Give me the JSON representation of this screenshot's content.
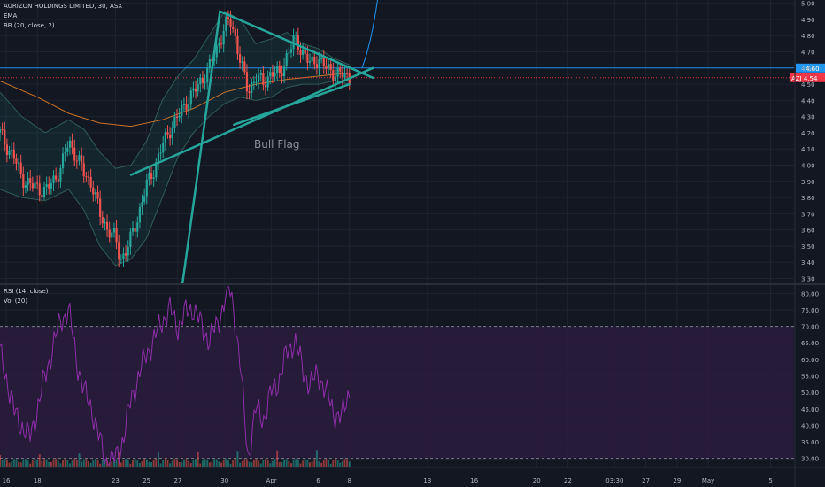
{
  "legend": {
    "symbol": "AURIZON HOLDINGS LIMITED, 30, ASX",
    "ema": "EMA",
    "bb": "BB (20, close, 2)",
    "rsi": "RSI (14, close)",
    "vol": "Vol (20)"
  },
  "colors": {
    "background": "#131722",
    "grid": "#1f2330",
    "up_candle": "#26a69a",
    "down_candle": "#ef5350",
    "trendline": "#26a69a",
    "bb_band": "#2e5c57",
    "ema": "#c9742a",
    "price_line": "#2196f3",
    "rsi_line": "#8e2ea8",
    "rsi_band": "#2a1c3d",
    "price_tag": "#f23645",
    "level_tag": "#2196f3",
    "axis_text": "#b2b5be"
  },
  "annotation": {
    "text": "Bull Flag"
  },
  "chart_data": [
    {
      "type": "candlestick",
      "title": "AURIZON HOLDINGS LIMITED, 30, ASX",
      "y_axis_ticks": [
        "5.00",
        "4.90",
        "4.80",
        "4.70",
        "4.60",
        "4.50",
        "4.40",
        "4.30",
        "4.20",
        "4.10",
        "4.00",
        "3.90",
        "3.80",
        "3.70",
        "3.60",
        "3.50",
        "3.40",
        "3.30"
      ],
      "ylim": [
        3.27,
        5.02
      ],
      "x_axis_ticks": [
        "16",
        "18",
        "23",
        "25",
        "27",
        "30",
        "Apr",
        "6",
        "8",
        "13",
        "16",
        "20",
        "22",
        "03:30",
        "27",
        "29",
        "May",
        "5"
      ],
      "x_axis_tick_values": [
        16,
        18,
        23,
        25,
        27,
        30,
        33,
        36,
        38,
        43,
        46,
        50,
        52,
        55,
        57,
        59,
        61,
        65
      ],
      "xlim": [
        15.6,
        66.5
      ],
      "close_series": {
        "x": [
          15.6,
          16,
          16.5,
          17,
          17.5,
          18,
          18.5,
          19,
          19.5,
          20,
          20.5,
          21,
          21.5,
          22,
          22.5,
          23,
          23.3,
          23.6,
          24,
          24.5,
          25,
          25.5,
          26,
          26.5,
          27,
          27.5,
          28,
          28.5,
          29,
          29.5,
          30,
          30.3,
          30.6,
          31,
          31.5,
          32,
          32.5,
          33,
          33.5,
          34,
          34.5,
          35,
          35.5,
          36,
          36.5,
          37,
          37.5,
          38
        ],
        "close": [
          4.2,
          4.12,
          4.05,
          3.92,
          3.88,
          3.86,
          3.84,
          3.9,
          3.98,
          4.15,
          4.05,
          3.95,
          3.88,
          3.7,
          3.6,
          3.55,
          3.42,
          3.45,
          3.55,
          3.7,
          3.88,
          3.98,
          4.12,
          4.22,
          4.3,
          4.38,
          4.45,
          4.52,
          4.6,
          4.72,
          4.85,
          4.9,
          4.82,
          4.65,
          4.45,
          4.55,
          4.5,
          4.58,
          4.55,
          4.68,
          4.78,
          4.7,
          4.62,
          4.66,
          4.6,
          4.57,
          4.56,
          4.54
        ]
      },
      "ema_series": {
        "x": [
          15.6,
          18,
          20,
          22,
          24,
          26,
          28,
          30,
          32,
          34,
          36,
          38
        ],
        "value": [
          4.52,
          4.42,
          4.32,
          4.26,
          4.24,
          4.28,
          4.35,
          4.45,
          4.5,
          4.53,
          4.55,
          4.57
        ]
      },
      "bb_upper": {
        "x": [
          15.6,
          17,
          18.5,
          20,
          21,
          22,
          23,
          24,
          25,
          26,
          27,
          28,
          29,
          30,
          31,
          32,
          33,
          34,
          35,
          36,
          37,
          38
        ],
        "value": [
          4.45,
          4.3,
          4.2,
          4.28,
          4.22,
          4.08,
          3.98,
          4.0,
          4.15,
          4.4,
          4.55,
          4.65,
          4.8,
          4.95,
          4.9,
          4.75,
          4.78,
          4.82,
          4.75,
          4.72,
          4.66,
          4.62
        ]
      },
      "bb_lower": {
        "x": [
          15.6,
          17,
          18.5,
          20,
          21,
          22,
          23,
          24,
          25,
          26,
          27,
          28,
          29,
          30,
          31,
          32,
          33,
          34,
          35,
          36,
          37,
          38
        ],
        "value": [
          3.85,
          3.8,
          3.78,
          3.85,
          3.72,
          3.5,
          3.38,
          3.42,
          3.55,
          3.8,
          4.05,
          4.2,
          4.3,
          4.38,
          4.42,
          4.4,
          4.42,
          4.48,
          4.5,
          4.5,
          4.52,
          4.5
        ]
      },
      "price_levels": [
        {
          "label": "4.60",
          "value": 4.6
        },
        {
          "label": "AZJ 4.54",
          "value": 4.54
        }
      ],
      "current_price": 4.54,
      "trendlines": [
        {
          "from": [
            29.7,
            4.95
          ],
          "to": [
            39.5,
            4.54
          ]
        },
        {
          "from": [
            24,
            3.94
          ],
          "to": [
            39.5,
            4.6
          ]
        },
        {
          "from": [
            27.3,
            3.27
          ],
          "to": [
            29.7,
            4.95
          ]
        },
        {
          "from": [
            30.6,
            4.25
          ],
          "to": [
            38,
            4.5
          ]
        }
      ],
      "projection": {
        "from": [
          38.8,
          4.6
        ],
        "to": [
          39.8,
          5.02
        ]
      }
    },
    {
      "type": "line",
      "title": "RSI (14, close)",
      "y_axis_ticks": [
        "80.00",
        "75.00",
        "70.00",
        "65.00",
        "60.00",
        "55.00",
        "50.00",
        "45.00",
        "40.00",
        "35.00",
        "30.00"
      ],
      "ylim": [
        27.5,
        82.5
      ],
      "overbought": 70,
      "oversold": 30,
      "series": [
        {
          "x": [
            15.6,
            16,
            16.5,
            17,
            17.5,
            18,
            18.5,
            19,
            19.5,
            20,
            20.5,
            21,
            21.5,
            22,
            22.5,
            23,
            23.3,
            23.6,
            24,
            24.5,
            25,
            25.5,
            26,
            26.5,
            27,
            27.5,
            28,
            28.5,
            29,
            29.5,
            30,
            30.3,
            30.6,
            31,
            31.5,
            32,
            32.5,
            33,
            33.5,
            34,
            34.5,
            35,
            35.5,
            36,
            36.5,
            37,
            37.5,
            38
          ],
          "values": [
            62,
            55,
            44,
            40,
            36,
            45,
            55,
            64,
            72,
            75,
            60,
            50,
            45,
            35,
            28,
            30,
            33,
            38,
            48,
            55,
            62,
            66,
            72,
            75,
            70,
            74,
            76,
            70,
            66,
            70,
            78,
            82,
            75,
            58,
            30,
            45,
            42,
            50,
            54,
            62,
            66,
            57,
            52,
            56,
            50,
            44,
            42,
            51
          ]
        }
      ]
    }
  ]
}
